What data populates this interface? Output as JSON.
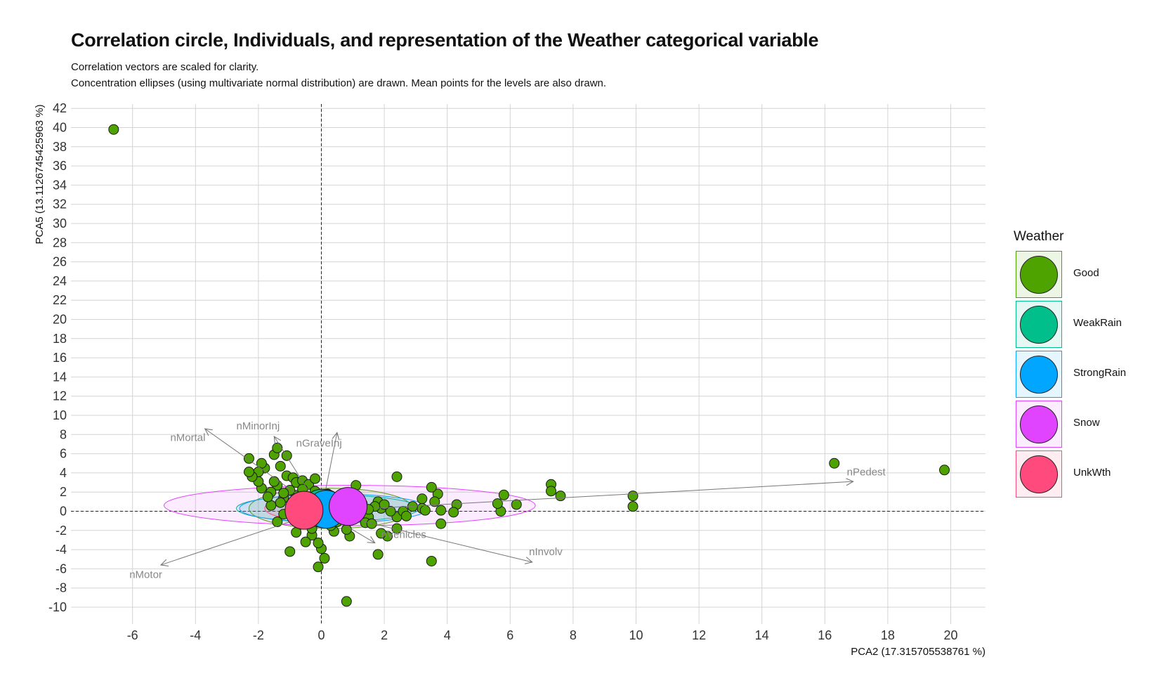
{
  "title": "Correlation circle, Individuals, and representation of the Weather categorical variable",
  "subtitle_line1": "Correlation vectors are scaled for clarity.",
  "subtitle_line2": "Concentration ellipses (using multivariate normal distribution) are drawn. Mean points for the levels are also drawn.",
  "chart_data": {
    "type": "scatter",
    "xlabel": "PCA2 (17.315705538761 %)",
    "ylabel": "PCA5 (13.1126745425963 %)",
    "xlim": [
      -8,
      21
    ],
    "ylim": [
      -12,
      42
    ],
    "xticks": [
      -6,
      -4,
      -2,
      0,
      2,
      4,
      6,
      8,
      10,
      12,
      14,
      16,
      18,
      20
    ],
    "yticks": [
      -10,
      -8,
      -6,
      -4,
      -2,
      0,
      2,
      4,
      6,
      8,
      10,
      12,
      14,
      16,
      18,
      20,
      22,
      24,
      26,
      28,
      30,
      32,
      34,
      36,
      38,
      40,
      42
    ],
    "grid": true,
    "reference_lines": {
      "x": 0,
      "y": 0,
      "style": "dashed"
    },
    "legend": {
      "title": "Weather",
      "placement": "right",
      "entries": [
        {
          "name": "Good",
          "color": "#4ea300"
        },
        {
          "name": "WeakRain",
          "color": "#00bf8b"
        },
        {
          "name": "StrongRain",
          "color": "#00a6ff"
        },
        {
          "name": "Snow",
          "color": "#e044ff"
        },
        {
          "name": "UnkWth",
          "color": "#ff4a7d"
        }
      ]
    },
    "vectors": [
      {
        "name": "nMortal",
        "x": -3.7,
        "y": 8.6
      },
      {
        "name": "nMinorInj",
        "x": -1.5,
        "y": 7.8
      },
      {
        "name": "nGraveInj",
        "x": 0.5,
        "y": 8.2
      },
      {
        "name": "nPedest",
        "x": 16.9,
        "y": 3.1
      },
      {
        "name": "nInvolv",
        "x": 6.7,
        "y": -5.3
      },
      {
        "name": "nMotor",
        "x": -5.1,
        "y": -5.6
      },
      {
        "name": "nVehicles",
        "x": 1.7,
        "y": -3.3
      }
    ],
    "vector_labels": [
      {
        "name": "nMortal",
        "x": -4.8,
        "y": 7.7
      },
      {
        "name": "nMinorInj",
        "x": -2.7,
        "y": 8.9
      },
      {
        "name": "nGraveInj",
        "x": -0.8,
        "y": 7.1
      },
      {
        "name": "nPedest",
        "x": 16.7,
        "y": 4.1
      },
      {
        "name": "nInvolv",
        "x": 6.6,
        "y": -4.2
      },
      {
        "name": "nMotor",
        "x": -6.1,
        "y": -6.6
      },
      {
        "name": "nVehicles",
        "x": 1.9,
        "y": -2.4
      }
    ],
    "ellipses": [
      {
        "level": "Good",
        "cx": 0.3,
        "cy": 0.3,
        "rx": 2.6,
        "ry": 2.1,
        "color": "#4ea300"
      },
      {
        "level": "WeakRain",
        "cx": 0.2,
        "cy": 0.3,
        "rx": 2.9,
        "ry": 1.4,
        "color": "#00bf8b"
      },
      {
        "level": "StrongRain",
        "cx": 0.4,
        "cy": 0.3,
        "rx": 3.0,
        "ry": 1.5,
        "color": "#00a6ff"
      },
      {
        "level": "Snow",
        "cx": 0.9,
        "cy": 0.6,
        "rx": 5.9,
        "ry": 2.1,
        "color": "#e044ff"
      },
      {
        "level": "UnkWth",
        "cx": -0.3,
        "cy": 0.3,
        "rx": 1.5,
        "ry": 1.2,
        "color": "#ff4a7d"
      }
    ],
    "means": [
      {
        "level": "Good",
        "x": 0.1,
        "y": 0.3,
        "color": "#4ea300"
      },
      {
        "level": "WeakRain",
        "x": 0.0,
        "y": 0.3,
        "color": "#00bf8b"
      },
      {
        "level": "StrongRain",
        "x": 0.15,
        "y": 0.2,
        "color": "#00a6ff"
      },
      {
        "level": "Snow",
        "x": 0.85,
        "y": 0.5,
        "color": "#e044ff"
      },
      {
        "level": "UnkWth",
        "x": -0.55,
        "y": 0.1,
        "color": "#ff4a7d"
      }
    ],
    "points": [
      [
        -6.6,
        39.8
      ],
      [
        16.3,
        5.0
      ],
      [
        19.8,
        4.3
      ],
      [
        9.9,
        1.6
      ],
      [
        9.9,
        0.5
      ],
      [
        7.6,
        1.6
      ],
      [
        7.3,
        2.8
      ],
      [
        7.3,
        2.1
      ],
      [
        6.2,
        0.7
      ],
      [
        5.8,
        1.7
      ],
      [
        5.7,
        0.0
      ],
      [
        5.6,
        0.8
      ],
      [
        4.3,
        0.7
      ],
      [
        4.2,
        -0.1
      ],
      [
        3.8,
        -1.3
      ],
      [
        3.8,
        0.1
      ],
      [
        3.7,
        1.8
      ],
      [
        3.6,
        1.0
      ],
      [
        3.5,
        2.5
      ],
      [
        3.5,
        -5.2
      ],
      [
        3.2,
        1.3
      ],
      [
        3.2,
        0.3
      ],
      [
        3.3,
        0.1
      ],
      [
        2.4,
        3.6
      ],
      [
        2.4,
        -0.6
      ],
      [
        2.4,
        -1.8
      ],
      [
        2.1,
        -2.6
      ],
      [
        2.2,
        0.0
      ],
      [
        1.9,
        0.3
      ],
      [
        1.8,
        -4.5
      ],
      [
        1.8,
        1.0
      ],
      [
        1.7,
        0.5
      ],
      [
        1.5,
        -0.6
      ],
      [
        1.4,
        -1.2
      ],
      [
        1.3,
        0.8
      ],
      [
        1.1,
        2.7
      ],
      [
        1.0,
        0.6
      ],
      [
        0.9,
        -2.6
      ],
      [
        0.8,
        -9.4
      ],
      [
        0.8,
        -1.9
      ],
      [
        0.5,
        -1.1
      ],
      [
        0.4,
        -2.1
      ],
      [
        0.3,
        0.5
      ],
      [
        0.1,
        -4.9
      ],
      [
        0.0,
        -3.9
      ],
      [
        -0.1,
        -3.3
      ],
      [
        -0.1,
        -5.8
      ],
      [
        -0.3,
        -2.5
      ],
      [
        -0.3,
        -1.8
      ],
      [
        -0.4,
        -0.6
      ],
      [
        -0.5,
        0.6
      ],
      [
        -0.5,
        -3.2
      ],
      [
        -0.6,
        0.8
      ],
      [
        -0.7,
        -1.4
      ],
      [
        -0.8,
        1.6
      ],
      [
        -0.9,
        0.4
      ],
      [
        -0.9,
        -0.8
      ],
      [
        -1.0,
        2.2
      ],
      [
        -1.0,
        -4.2
      ],
      [
        -1.2,
        1.4
      ],
      [
        -1.2,
        1.9
      ],
      [
        -1.3,
        0.9
      ],
      [
        -1.4,
        -1.1
      ],
      [
        -1.4,
        2.7
      ],
      [
        -1.5,
        3.1
      ],
      [
        -1.6,
        2.0
      ],
      [
        -1.6,
        0.6
      ],
      [
        -1.7,
        1.5
      ],
      [
        -1.8,
        4.5
      ],
      [
        -1.9,
        2.4
      ],
      [
        -1.9,
        5.0
      ],
      [
        -2.0,
        3.1
      ],
      [
        -2.0,
        4.1
      ],
      [
        -2.2,
        3.6
      ],
      [
        -2.3,
        4.1
      ],
      [
        -2.3,
        5.5
      ],
      [
        -1.5,
        5.9
      ],
      [
        -1.3,
        4.7
      ],
      [
        -1.1,
        5.8
      ],
      [
        -1.4,
        6.6
      ],
      [
        -1.1,
        3.7
      ],
      [
        -0.9,
        3.5
      ],
      [
        -0.8,
        3.0
      ],
      [
        -0.6,
        3.2
      ],
      [
        -0.4,
        2.8
      ],
      [
        -0.6,
        2.3
      ],
      [
        -0.2,
        3.4
      ],
      [
        -0.2,
        2.1
      ],
      [
        0.0,
        1.3
      ],
      [
        0.2,
        1.8
      ],
      [
        -0.3,
        0.2
      ],
      [
        0.6,
        0.2
      ],
      [
        0.7,
        1.2
      ],
      [
        1.5,
        0.2
      ],
      [
        2.0,
        0.7
      ],
      [
        2.6,
        0.0
      ],
      [
        2.9,
        0.5
      ],
      [
        1.2,
        -0.3
      ],
      [
        1.6,
        -1.3
      ],
      [
        1.9,
        -2.3
      ],
      [
        2.7,
        -0.5
      ],
      [
        0.3,
        -1.5
      ],
      [
        -0.8,
        -2.2
      ],
      [
        -1.2,
        -0.3
      ]
    ]
  }
}
